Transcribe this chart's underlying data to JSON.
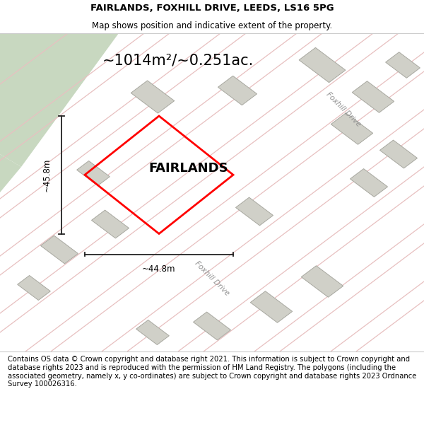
{
  "title_line1": "FAIRLANDS, FOXHILL DRIVE, LEEDS, LS16 5PG",
  "title_line2": "Map shows position and indicative extent of the property.",
  "property_label": "FAIRLANDS",
  "area_label": "~1014m²/~0.251ac.",
  "width_label": "~44.8m",
  "height_label": "~45.8m",
  "footer_text": "Contains OS data © Crown copyright and database right 2021. This information is subject to Crown copyright and database rights 2023 and is reproduced with the permission of HM Land Registry. The polygons (including the associated geometry, namely x, y co-ordinates) are subject to Crown copyright and database rights 2023 Ordnance Survey 100026316.",
  "map_bg": "#ffffff",
  "road_green_color": "#c8d8c0",
  "road_line_color": "#e8c0c0",
  "building_color": "#d0d0c8",
  "building_edge_color": "#a8a8a0",
  "property_edge": "#ff0000",
  "dim_line_color": "#222222",
  "title_fontsize": 9.5,
  "subtitle_fontsize": 8.5,
  "area_fontsize": 15,
  "property_label_fontsize": 13,
  "dim_fontsize": 8.5,
  "footer_fontsize": 7.2,
  "foxhill_fontsize": 7.5
}
